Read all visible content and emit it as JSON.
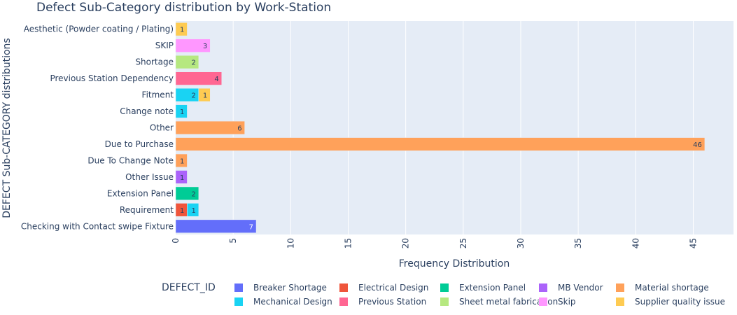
{
  "chart_data": {
    "type": "bar",
    "orientation": "horizontal",
    "barmode": "stack",
    "title": "Defect Sub-Category distribution by Work-Station",
    "xlabel": "Frequency Distribution",
    "ylabel": "DEFECT Sub-CATEGORY distributions",
    "xlim": [
      0,
      48.5
    ],
    "xticks": [
      0,
      5,
      10,
      15,
      20,
      25,
      30,
      35,
      40,
      45
    ],
    "grid": true,
    "categories": [
      "Aesthetic (Powder coating / Plating)",
      "SKIP",
      "Shortage",
      "Previous Station Dependency",
      "Fitment",
      "Change note",
      "Other",
      "Due to Purchase",
      "Due To Change Note",
      "Other Issue",
      "Extension Panel",
      "Requirement",
      "Checking with Contact swipe Fixture"
    ],
    "legend": {
      "title": "DEFECT_ID",
      "placement": "bottom"
    },
    "series": [
      {
        "name": "Breaker Shortage",
        "color": "#636efa",
        "values": [
          0,
          0,
          0,
          0,
          0,
          0,
          0,
          0,
          0,
          0,
          0,
          0,
          7
        ]
      },
      {
        "name": "Electrical Design",
        "color": "#ef553b",
        "values": [
          0,
          0,
          0,
          0,
          0,
          0,
          0,
          0,
          0,
          0,
          0,
          1,
          0
        ]
      },
      {
        "name": "Extension Panel",
        "color": "#00cc96",
        "values": [
          0,
          0,
          0,
          0,
          0,
          0,
          0,
          0,
          0,
          0,
          2,
          0,
          0
        ]
      },
      {
        "name": "MB Vendor",
        "color": "#ab63fa",
        "values": [
          0,
          0,
          0,
          0,
          0,
          0,
          0,
          0,
          0,
          1,
          0,
          0,
          0
        ]
      },
      {
        "name": "Material shortage",
        "color": "#ffa15a",
        "values": [
          0,
          0,
          0,
          0,
          0,
          0,
          6,
          46,
          1,
          0,
          0,
          0,
          0
        ]
      },
      {
        "name": "Mechanical Design",
        "color": "#19d3f3",
        "values": [
          0,
          0,
          0,
          0,
          2,
          1,
          0,
          0,
          0,
          0,
          0,
          1,
          0
        ]
      },
      {
        "name": "Previous Station",
        "color": "#ff6692",
        "values": [
          0,
          0,
          0,
          4,
          0,
          0,
          0,
          0,
          0,
          0,
          0,
          0,
          0
        ]
      },
      {
        "name": "Sheet metal fabrication",
        "color": "#b6e880",
        "values": [
          0,
          0,
          2,
          0,
          0,
          0,
          0,
          0,
          0,
          0,
          0,
          0,
          0
        ]
      },
      {
        "name": "Skip",
        "color": "#ff97ff",
        "values": [
          0,
          3,
          0,
          0,
          0,
          0,
          0,
          0,
          0,
          0,
          0,
          0,
          0
        ]
      },
      {
        "name": "Supplier quality issue",
        "color": "#fecb52",
        "values": [
          1,
          0,
          0,
          0,
          1,
          0,
          0,
          0,
          0,
          0,
          0,
          0,
          0
        ]
      }
    ]
  }
}
